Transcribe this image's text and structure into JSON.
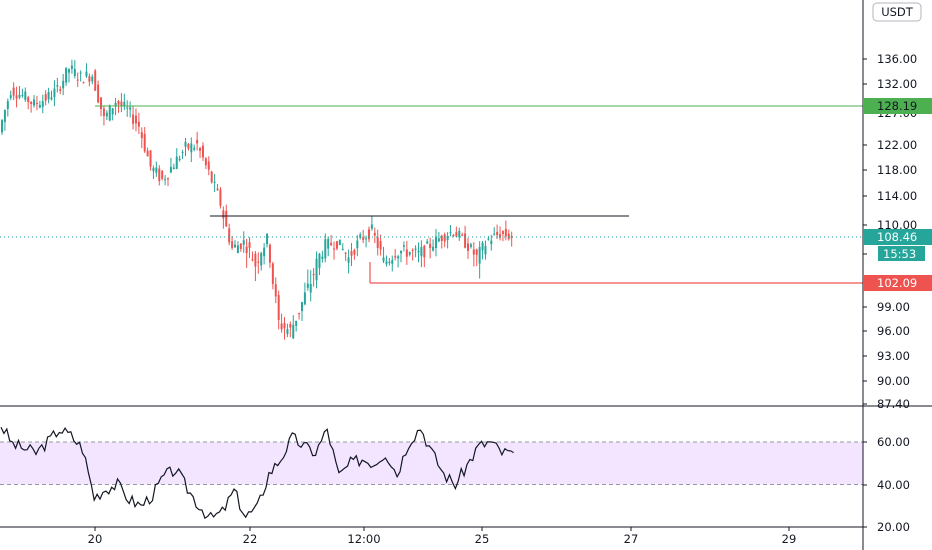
{
  "currency": "USDT",
  "colors": {
    "up": "#26a69a",
    "down": "#ef5350",
    "resistance": "#4caf50",
    "support": "#ef5350",
    "range_line": "#131722",
    "last_price": "#26a69a",
    "rsi_line": "#131722",
    "rsi_band": "#f3e5ff"
  },
  "chart_data": [
    {
      "type": "candlestick",
      "title": "",
      "y_axis": {
        "ticks": [
          "136.00",
          "132.00",
          "127.00",
          "122.00",
          "118.00",
          "114.00",
          "110.00",
          "105.00",
          "102.00",
          "99.00",
          "96.00",
          "93.00",
          "90.00",
          "87.40"
        ],
        "range": [
          87.4,
          138
        ]
      },
      "x_axis": {
        "ticks": [
          "20",
          "22",
          "12:00",
          "25",
          "27",
          "29"
        ]
      },
      "price_path": [
        [
          0,
          124
        ],
        [
          1,
          131
        ],
        [
          2,
          130
        ],
        [
          3,
          128.5
        ],
        [
          4,
          129.5
        ],
        [
          5,
          131
        ],
        [
          6,
          134.5
        ],
        [
          7,
          133
        ],
        [
          8,
          133.5
        ],
        [
          9,
          126
        ],
        [
          10,
          129
        ],
        [
          11,
          127.5
        ],
        [
          12,
          125
        ],
        [
          13,
          118.5
        ],
        [
          14,
          116.5
        ],
        [
          15,
          119
        ],
        [
          16,
          121.5
        ],
        [
          17,
          122
        ],
        [
          18,
          117.5
        ],
        [
          19,
          113
        ],
        [
          20,
          106
        ],
        [
          21,
          107
        ],
        [
          22,
          104
        ],
        [
          23,
          107.5
        ],
        [
          24,
          97
        ],
        [
          25,
          96
        ],
        [
          26,
          99.5
        ],
        [
          27,
          103
        ],
        [
          28,
          106.5
        ],
        [
          29,
          107
        ],
        [
          30,
          104.5
        ],
        [
          31,
          107.5
        ],
        [
          32,
          109
        ],
        [
          33,
          104
        ],
        [
          34,
          105.5
        ],
        [
          35,
          105.5
        ],
        [
          36,
          105
        ],
        [
          37,
          106.5
        ],
        [
          38,
          108
        ],
        [
          39,
          109
        ],
        [
          40,
          107
        ],
        [
          41,
          104.5
        ],
        [
          42,
          107.5
        ],
        [
          43,
          108.5
        ],
        [
          44,
          108
        ]
      ],
      "levels": [
        {
          "label": "128.19",
          "value": 128.19,
          "kind": "resistance"
        },
        {
          "value": 111.5,
          "kind": "range_high"
        },
        {
          "label": "102.09",
          "value": 102.09,
          "kind": "support"
        }
      ],
      "last_price": {
        "label": "108.46",
        "value": 108.46,
        "countdown": "15:53"
      }
    },
    {
      "type": "line",
      "title": "",
      "y_axis": {
        "ticks": [
          "60.00",
          "40.00",
          "20.00"
        ],
        "range": [
          18,
          78
        ]
      },
      "band": [
        40,
        60
      ],
      "values": [
        [
          0,
          68
        ],
        [
          1,
          59
        ],
        [
          2,
          57
        ],
        [
          3,
          55
        ],
        [
          4,
          60
        ],
        [
          5,
          66
        ],
        [
          6,
          63
        ],
        [
          7,
          57
        ],
        [
          8,
          34
        ],
        [
          9,
          38
        ],
        [
          10,
          40
        ],
        [
          11,
          33
        ],
        [
          12,
          30
        ],
        [
          13,
          35
        ],
        [
          14,
          44
        ],
        [
          15,
          47
        ],
        [
          16,
          38
        ],
        [
          17,
          30
        ],
        [
          18,
          24
        ],
        [
          19,
          27
        ],
        [
          20,
          37
        ],
        [
          21,
          25
        ],
        [
          22,
          29
        ],
        [
          23,
          45
        ],
        [
          24,
          52
        ],
        [
          25,
          62
        ],
        [
          26,
          58
        ],
        [
          27,
          55
        ],
        [
          28,
          66
        ],
        [
          29,
          44
        ],
        [
          30,
          50
        ],
        [
          31,
          52
        ],
        [
          32,
          50
        ],
        [
          33,
          55
        ],
        [
          34,
          45
        ],
        [
          35,
          60
        ],
        [
          36,
          67
        ],
        [
          37,
          55
        ],
        [
          38,
          45
        ],
        [
          39,
          40
        ],
        [
          40,
          49
        ],
        [
          41,
          58
        ],
        [
          42,
          60
        ],
        [
          43,
          55
        ],
        [
          44,
          55
        ]
      ]
    }
  ]
}
